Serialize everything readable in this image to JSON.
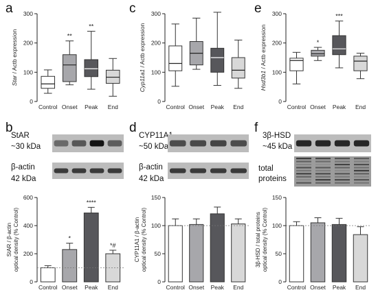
{
  "panels": {
    "a": {
      "letter": "a",
      "chart_data": {
        "type": "box",
        "ylabel_gene": "Star",
        "ylabel_rest": " / Actb expression",
        "categories": [
          "Control",
          "Onset",
          "Peak",
          "End"
        ],
        "ylim": [
          0,
          300
        ],
        "yticks": [
          0,
          100,
          200,
          300
        ],
        "boxes": [
          {
            "min": 28,
            "q1": 45,
            "median": 60,
            "q3": 86,
            "max": 108
          },
          {
            "min": 57,
            "q1": 68,
            "median": 125,
            "q3": 160,
            "max": 207
          },
          {
            "min": 42,
            "q1": 85,
            "median": 112,
            "q3": 143,
            "max": 240
          },
          {
            "min": 18,
            "q1": 62,
            "median": 83,
            "q3": 107,
            "max": 147
          }
        ],
        "colors": [
          "#ffffff",
          "#a7a7ab",
          "#57575b",
          "#d8d8d8"
        ],
        "annotations": [
          "",
          "**",
          "**",
          ""
        ]
      }
    },
    "c": {
      "letter": "c",
      "chart_data": {
        "type": "box",
        "ylabel_gene": "Cyp11a1",
        "ylabel_rest": " / Actb expression",
        "categories": [
          "Control",
          "Onset",
          "Peak",
          "End"
        ],
        "ylim": [
          0,
          300
        ],
        "yticks": [
          0,
          100,
          200,
          300
        ],
        "boxes": [
          {
            "min": 52,
            "q1": 105,
            "median": 130,
            "q3": 190,
            "max": 265
          },
          {
            "min": 110,
            "q1": 125,
            "median": 165,
            "q3": 205,
            "max": 285
          },
          {
            "min": 55,
            "q1": 100,
            "median": 150,
            "q3": 182,
            "max": 305
          },
          {
            "min": 45,
            "q1": 80,
            "median": 107,
            "q3": 150,
            "max": 210
          }
        ],
        "colors": [
          "#ffffff",
          "#a7a7ab",
          "#57575b",
          "#d8d8d8"
        ],
        "annotations": [
          "",
          "",
          "",
          ""
        ]
      }
    },
    "e": {
      "letter": "e",
      "chart_data": {
        "type": "box",
        "ylabel_gene": "Hsd3b1",
        "ylabel_rest": " / Actb expression",
        "categories": [
          "Control",
          "Onset",
          "Peak",
          "End"
        ],
        "ylim": [
          0,
          300
        ],
        "yticks": [
          0,
          100,
          200,
          300
        ],
        "boxes": [
          {
            "min": 60,
            "q1": 105,
            "median": 140,
            "q3": 148,
            "max": 168
          },
          {
            "min": 140,
            "q1": 155,
            "median": 163,
            "q3": 175,
            "max": 185
          },
          {
            "min": 115,
            "q1": 160,
            "median": 180,
            "q3": 225,
            "max": 275
          },
          {
            "min": 78,
            "q1": 105,
            "median": 138,
            "q3": 155,
            "max": 165
          }
        ],
        "colors": [
          "#ffffff",
          "#a7a7ab",
          "#57575b",
          "#d8d8d8"
        ],
        "annotations": [
          "",
          "*",
          "***",
          ""
        ]
      }
    },
    "b": {
      "letter": "b",
      "blot_top": {
        "name": "StAR",
        "size": "~30 kDa",
        "intensity": [
          0.55,
          0.65,
          1.0,
          0.62
        ]
      },
      "blot_bottom": {
        "name": "β-actin",
        "size": "42 kDa",
        "intensity": [
          0.8,
          0.8,
          0.8,
          0.8
        ]
      },
      "chart_data": {
        "type": "bar",
        "ylabel1": "StAR / β-actin",
        "ylabel2": "optical density (% Control)",
        "categories": [
          "Control",
          "Onset",
          "Peak",
          "End"
        ],
        "values": [
          100,
          230,
          490,
          200
        ],
        "errors": [
          15,
          45,
          40,
          25
        ],
        "ylim": [
          0,
          600
        ],
        "yticks": [
          0,
          200,
          400,
          600
        ],
        "reference_line": 100,
        "colors": [
          "#ffffff",
          "#a7a7ab",
          "#57575b",
          "#d8d8d8"
        ],
        "annotations": [
          "",
          "*",
          "****",
          "*#"
        ]
      }
    },
    "d": {
      "letter": "d",
      "blot_top": {
        "name": "CYP11A1",
        "size": "~50 kDa",
        "intensity": [
          0.7,
          0.72,
          0.75,
          0.7
        ]
      },
      "blot_bottom": {
        "name": "β-actin",
        "size": "42 kDa",
        "intensity": [
          0.8,
          0.8,
          0.8,
          0.8
        ]
      },
      "chart_data": {
        "type": "bar",
        "ylabel1": "CYP11A1 / β-actin",
        "ylabel2": "optical density (% Control)",
        "categories": [
          "Control",
          "Onset",
          "Peak",
          "End"
        ],
        "values": [
          100,
          102,
          121,
          103
        ],
        "errors": [
          12,
          10,
          12,
          9
        ],
        "ylim": [
          0,
          150
        ],
        "yticks": [
          0,
          50,
          100,
          150
        ],
        "reference_line": 100,
        "colors": [
          "#ffffff",
          "#a7a7ab",
          "#57575b",
          "#d8d8d8"
        ],
        "annotations": [
          "",
          "",
          "",
          ""
        ]
      }
    },
    "f": {
      "letter": "f",
      "blot_top": {
        "name": "3β-HSD",
        "size": "~45 kDa",
        "intensity": [
          0.9,
          0.9,
          0.9,
          0.9
        ]
      },
      "blot_bottom": {
        "name": "total",
        "name2": "proteins"
      },
      "chart_data": {
        "type": "bar",
        "ylabel1": "3β-HSD / total proteins",
        "ylabel2": "optical density (% Control)",
        "categories": [
          "Control",
          "Onset",
          "Peak",
          "End"
        ],
        "values": [
          100,
          105,
          102,
          84
        ],
        "errors": [
          7,
          9,
          11,
          14
        ],
        "ylim": [
          0,
          150
        ],
        "yticks": [
          0,
          50,
          100,
          150
        ],
        "reference_line": 100,
        "colors": [
          "#ffffff",
          "#a7a7ab",
          "#57575b",
          "#d8d8d8"
        ],
        "annotations": [
          "",
          "",
          "",
          ""
        ]
      }
    }
  }
}
